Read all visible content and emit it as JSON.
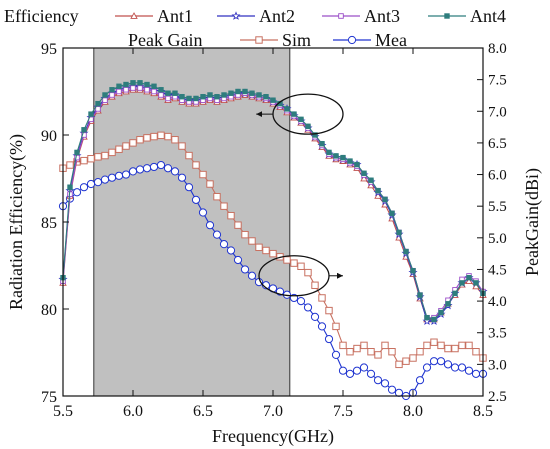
{
  "chart_data": {
    "type": "line",
    "title": "",
    "xlabel": "Frequency(GHz)",
    "ylabel_left": "Radiation Efficiency(%)",
    "ylabel_right": "PeakGain(dBi)",
    "xlim": [
      5.5,
      8.5
    ],
    "ylim_left": [
      75,
      95
    ],
    "ylim_right": [
      2.5,
      8.0
    ],
    "xticks": [
      "5.5",
      "6.0",
      "6.5",
      "7.0",
      "7.5",
      "8.0",
      "8.5"
    ],
    "yticks_left": [
      "75",
      "80",
      "85",
      "90",
      "95"
    ],
    "yticks_right": [
      "2.5",
      "3.0",
      "3.5",
      "4.0",
      "4.5",
      "5.0",
      "5.5",
      "6.0",
      "6.5",
      "7.0",
      "7.5",
      "8.0"
    ],
    "grid": false,
    "legend_efficiency_title": "Efficiency",
    "legend_gain_title": "Peak Gain",
    "shaded_band": {
      "x_start": 5.72,
      "x_end": 7.12,
      "color": "#c0c0c0"
    },
    "ellipses": [
      {
        "cx": 7.25,
        "cy_axis": "left",
        "cy": 91.2,
        "arrow_to_x": 6.88
      },
      {
        "cx": 7.15,
        "cy_axis": "right",
        "cy": 4.4,
        "arrow_to_x": 7.5
      }
    ],
    "efficiency_series": [
      {
        "name": "Ant1",
        "axis": "left",
        "color": "#c0504d",
        "marker": "triangle",
        "x": [
          5.5,
          5.55,
          5.6,
          5.65,
          5.7,
          5.75,
          5.8,
          5.85,
          5.9,
          5.95,
          6.0,
          6.05,
          6.1,
          6.15,
          6.2,
          6.25,
          6.3,
          6.35,
          6.4,
          6.45,
          6.5,
          6.55,
          6.6,
          6.65,
          6.7,
          6.75,
          6.8,
          6.85,
          6.9,
          6.95,
          7.0,
          7.05,
          7.1,
          7.15,
          7.2,
          7.25,
          7.3,
          7.35,
          7.4,
          7.45,
          7.5,
          7.55,
          7.6,
          7.65,
          7.7,
          7.75,
          7.8,
          7.85,
          7.9,
          7.95,
          8.0,
          8.05,
          8.1,
          8.15,
          8.2,
          8.25,
          8.3,
          8.35,
          8.4,
          8.45,
          8.5
        ],
        "values": [
          81.5,
          86.5,
          88.6,
          89.9,
          90.8,
          91.4,
          91.9,
          92.2,
          92.4,
          92.5,
          92.6,
          92.6,
          92.5,
          92.4,
          92.2,
          92.0,
          92.1,
          91.9,
          91.8,
          91.8,
          91.9,
          92.0,
          91.9,
          92.0,
          92.1,
          92.2,
          92.3,
          92.2,
          92.1,
          92.0,
          91.8,
          91.6,
          91.3,
          91.0,
          90.7,
          90.3,
          89.8,
          89.3,
          88.8,
          88.6,
          88.5,
          88.3,
          88.1,
          87.5,
          87.1,
          86.5,
          86.0,
          85.2,
          84.1,
          83.0,
          82.0,
          80.6,
          79.4,
          79.4,
          79.8,
          80.3,
          80.8,
          81.4,
          81.6,
          81.3,
          80.8
        ]
      },
      {
        "name": "Ant2",
        "axis": "left",
        "color": "#3030c0",
        "marker": "star",
        "x": [
          5.5,
          5.55,
          5.6,
          5.65,
          5.7,
          5.75,
          5.8,
          5.85,
          5.9,
          5.95,
          6.0,
          6.05,
          6.1,
          6.15,
          6.2,
          6.25,
          6.3,
          6.35,
          6.4,
          6.45,
          6.5,
          6.55,
          6.6,
          6.65,
          6.7,
          6.75,
          6.8,
          6.85,
          6.9,
          6.95,
          7.0,
          7.05,
          7.1,
          7.15,
          7.2,
          7.25,
          7.3,
          7.35,
          7.4,
          7.45,
          7.5,
          7.55,
          7.6,
          7.65,
          7.7,
          7.75,
          7.8,
          7.85,
          7.9,
          7.95,
          8.0,
          8.05,
          8.1,
          8.15,
          8.2,
          8.25,
          8.3,
          8.35,
          8.4,
          8.45,
          8.5
        ],
        "values": [
          81.7,
          86.8,
          88.8,
          90.1,
          91.0,
          91.6,
          92.1,
          92.4,
          92.6,
          92.7,
          92.8,
          92.8,
          92.7,
          92.6,
          92.5,
          92.3,
          92.3,
          92.1,
          92.0,
          92.0,
          92.1,
          92.2,
          92.1,
          92.2,
          92.3,
          92.4,
          92.4,
          92.3,
          92.2,
          92.1,
          91.9,
          91.7,
          91.5,
          91.1,
          90.8,
          90.4,
          89.9,
          89.4,
          88.9,
          88.7,
          88.6,
          88.4,
          88.3,
          87.7,
          87.3,
          86.7,
          86.2,
          85.4,
          84.3,
          83.2,
          82.1,
          80.7,
          79.3,
          79.3,
          79.7,
          80.2,
          80.9,
          81.5,
          81.8,
          81.5,
          81.0
        ]
      },
      {
        "name": "Ant3",
        "axis": "left",
        "color": "#9b4fc8",
        "marker": "square",
        "x": [
          5.5,
          5.55,
          5.6,
          5.65,
          5.7,
          5.75,
          5.8,
          5.85,
          5.9,
          5.95,
          6.0,
          6.05,
          6.1,
          6.15,
          6.2,
          6.25,
          6.3,
          6.35,
          6.4,
          6.45,
          6.5,
          6.55,
          6.6,
          6.65,
          6.7,
          6.75,
          6.8,
          6.85,
          6.9,
          6.95,
          7.0,
          7.05,
          7.1,
          7.15,
          7.2,
          7.25,
          7.3,
          7.35,
          7.4,
          7.45,
          7.5,
          7.55,
          7.6,
          7.65,
          7.7,
          7.75,
          7.8,
          7.85,
          7.9,
          7.95,
          8.0,
          8.05,
          8.1,
          8.15,
          8.2,
          8.25,
          8.3,
          8.35,
          8.4,
          8.45,
          8.5
        ],
        "values": [
          81.6,
          86.6,
          88.7,
          90.0,
          90.9,
          91.5,
          92.0,
          92.3,
          92.5,
          92.6,
          92.7,
          92.7,
          92.6,
          92.5,
          92.3,
          92.1,
          92.2,
          92.0,
          91.9,
          91.9,
          92.0,
          92.1,
          92.0,
          92.1,
          92.2,
          92.3,
          92.4,
          92.3,
          92.2,
          92.1,
          91.9,
          91.7,
          91.4,
          91.1,
          90.8,
          90.4,
          89.9,
          89.4,
          88.9,
          88.7,
          88.6,
          88.4,
          88.2,
          87.7,
          87.3,
          86.8,
          86.3,
          85.5,
          84.4,
          83.3,
          82.2,
          80.8,
          79.5,
          79.5,
          79.9,
          80.5,
          81.1,
          81.7,
          81.9,
          81.6,
          81.0
        ]
      },
      {
        "name": "Ant4",
        "axis": "left",
        "color": "#2e7d7d",
        "marker": "square-filled",
        "x": [
          5.5,
          5.55,
          5.6,
          5.65,
          5.7,
          5.75,
          5.8,
          5.85,
          5.9,
          5.95,
          6.0,
          6.05,
          6.1,
          6.15,
          6.2,
          6.25,
          6.3,
          6.35,
          6.4,
          6.45,
          6.5,
          6.55,
          6.6,
          6.65,
          6.7,
          6.75,
          6.8,
          6.85,
          6.9,
          6.95,
          7.0,
          7.05,
          7.1,
          7.15,
          7.2,
          7.25,
          7.3,
          7.35,
          7.4,
          7.45,
          7.5,
          7.55,
          7.6,
          7.65,
          7.7,
          7.75,
          7.8,
          7.85,
          7.9,
          7.95,
          8.0,
          8.05,
          8.1,
          8.15,
          8.2,
          8.25,
          8.3,
          8.35,
          8.4,
          8.45,
          8.5
        ],
        "values": [
          81.8,
          87.0,
          89.0,
          90.3,
          91.2,
          91.8,
          92.3,
          92.6,
          92.8,
          92.9,
          93.0,
          93.0,
          92.9,
          92.8,
          92.6,
          92.4,
          92.4,
          92.2,
          92.1,
          92.1,
          92.2,
          92.3,
          92.2,
          92.3,
          92.4,
          92.5,
          92.5,
          92.4,
          92.3,
          92.2,
          92.0,
          91.8,
          91.5,
          91.2,
          90.9,
          90.5,
          90.0,
          89.5,
          89.0,
          88.8,
          88.7,
          88.5,
          88.3,
          87.8,
          87.4,
          86.8,
          86.3,
          85.5,
          84.4,
          83.3,
          82.2,
          80.8,
          79.5,
          79.4,
          79.8,
          80.3,
          80.9,
          81.5,
          81.8,
          81.5,
          80.9
        ]
      }
    ],
    "gain_series": [
      {
        "name": "Sim",
        "axis": "right",
        "color": "#c87060",
        "marker": "square-open",
        "x": [
          5.5,
          5.55,
          5.6,
          5.65,
          5.7,
          5.75,
          5.8,
          5.85,
          5.9,
          5.95,
          6.0,
          6.05,
          6.1,
          6.15,
          6.2,
          6.25,
          6.3,
          6.35,
          6.4,
          6.45,
          6.5,
          6.55,
          6.6,
          6.65,
          6.7,
          6.75,
          6.8,
          6.85,
          6.9,
          6.95,
          7.0,
          7.05,
          7.1,
          7.15,
          7.2,
          7.25,
          7.3,
          7.35,
          7.4,
          7.45,
          7.5,
          7.55,
          7.6,
          7.65,
          7.7,
          7.75,
          7.8,
          7.85,
          7.9,
          7.95,
          8.0,
          8.05,
          8.1,
          8.15,
          8.2,
          8.25,
          8.3,
          8.35,
          8.4,
          8.45,
          8.5
        ],
        "values": [
          6.1,
          6.15,
          6.2,
          6.22,
          6.25,
          6.28,
          6.3,
          6.35,
          6.4,
          6.45,
          6.5,
          6.55,
          6.58,
          6.6,
          6.62,
          6.6,
          6.55,
          6.45,
          6.3,
          6.15,
          6.0,
          5.85,
          5.65,
          5.5,
          5.35,
          5.2,
          5.05,
          4.95,
          4.85,
          4.8,
          4.75,
          4.7,
          4.65,
          4.6,
          4.55,
          4.45,
          4.25,
          4.05,
          3.85,
          3.6,
          3.3,
          3.2,
          3.25,
          3.3,
          3.2,
          3.15,
          3.3,
          3.2,
          3.0,
          3.05,
          3.1,
          3.2,
          3.3,
          3.35,
          3.3,
          3.25,
          3.25,
          3.3,
          3.3,
          3.2,
          3.1
        ]
      },
      {
        "name": "Mea",
        "axis": "right",
        "color": "#2035d0",
        "marker": "circle-open",
        "x": [
          5.5,
          5.55,
          5.6,
          5.65,
          5.7,
          5.75,
          5.8,
          5.85,
          5.9,
          5.95,
          6.0,
          6.05,
          6.1,
          6.15,
          6.2,
          6.25,
          6.3,
          6.35,
          6.4,
          6.45,
          6.5,
          6.55,
          6.6,
          6.65,
          6.7,
          6.75,
          6.8,
          6.85,
          6.9,
          6.95,
          7.0,
          7.05,
          7.1,
          7.15,
          7.2,
          7.25,
          7.3,
          7.35,
          7.4,
          7.45,
          7.5,
          7.55,
          7.6,
          7.65,
          7.7,
          7.75,
          7.8,
          7.85,
          7.9,
          7.95,
          8.0,
          8.05,
          8.1,
          8.15,
          8.2,
          8.25,
          8.3,
          8.35,
          8.4,
          8.45,
          8.5
        ],
        "values": [
          5.5,
          5.62,
          5.72,
          5.8,
          5.85,
          5.88,
          5.92,
          5.95,
          5.98,
          6.0,
          6.05,
          6.08,
          6.1,
          6.12,
          6.15,
          6.1,
          6.05,
          5.95,
          5.8,
          5.6,
          5.4,
          5.2,
          5.05,
          4.9,
          4.8,
          4.65,
          4.5,
          4.4,
          4.3,
          4.25,
          4.2,
          4.15,
          4.1,
          4.05,
          4.0,
          3.9,
          3.75,
          3.6,
          3.4,
          3.15,
          2.9,
          2.85,
          2.9,
          2.95,
          2.85,
          2.75,
          2.7,
          2.6,
          2.55,
          2.5,
          2.55,
          2.75,
          2.95,
          3.05,
          3.05,
          3.0,
          2.95,
          2.95,
          2.9,
          2.85,
          2.85
        ]
      }
    ]
  }
}
